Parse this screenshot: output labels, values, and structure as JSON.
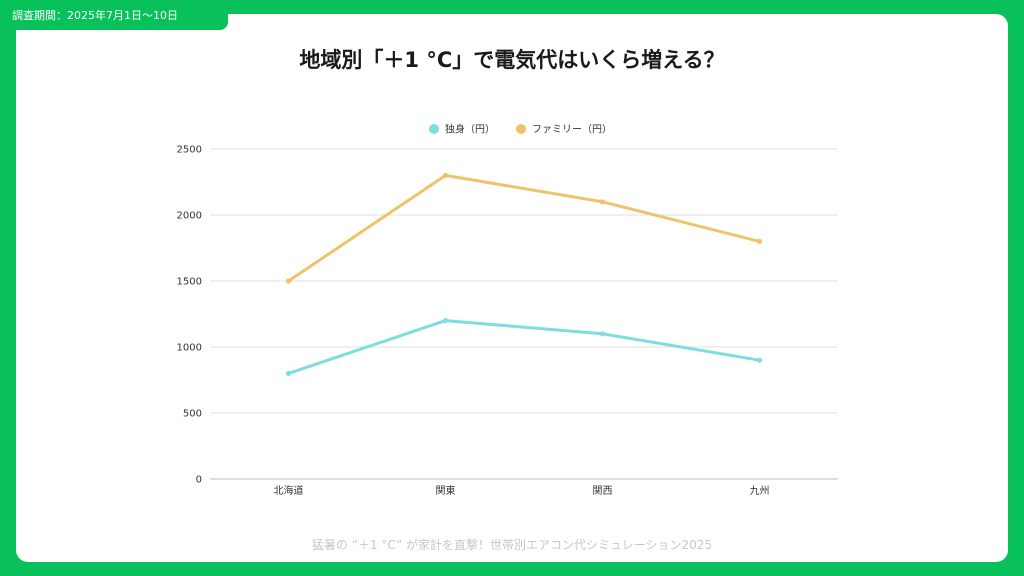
{
  "header_tag": "調査期間：2025年7月1日〜10日",
  "title": "地域別「＋1 °C」で電気代はいくら増える？",
  "footer": "猛暑の “＋1 °C” が家計を直撃！世帯別エアコン代シミュレーション2025",
  "colors": {
    "background": "#09c15a",
    "single": "#7ddde0",
    "family": "#f2c26b",
    "grid": "#e0e0e0"
  },
  "chart_data": {
    "type": "line",
    "categories": [
      "北海道",
      "関東",
      "関西",
      "九州"
    ],
    "series": [
      {
        "name": "独身（円）",
        "values": [
          800,
          1200,
          1100,
          900
        ]
      },
      {
        "name": "ファミリー（円）",
        "values": [
          1500,
          2300,
          2100,
          1800
        ]
      }
    ],
    "ylim": [
      0,
      2500
    ],
    "yticks": [
      0,
      500,
      1000,
      1500,
      2000,
      2500
    ],
    "grid": true,
    "legend": "top-center"
  }
}
